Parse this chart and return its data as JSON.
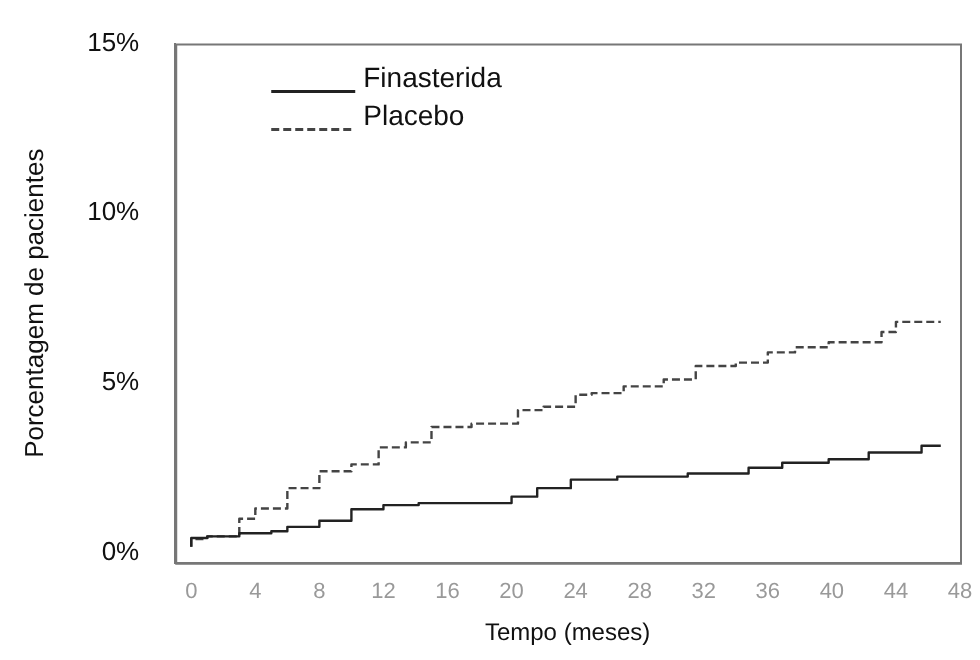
{
  "chart_data": {
    "type": "step",
    "xlabel": "Tempo (meses)",
    "ylabel": "Porcentagem de pacientes",
    "xlim": [
      -1,
      48
    ],
    "xticks": [
      0,
      4,
      8,
      12,
      16,
      20,
      24,
      28,
      32,
      36,
      40,
      44,
      48
    ],
    "ylim": [
      -0.3,
      15
    ],
    "yticks": [
      {
        "value": 0,
        "label": "0%"
      },
      {
        "value": 5,
        "label": "5%"
      },
      {
        "value": 10,
        "label": "10%"
      },
      {
        "value": 15,
        "label": "15%"
      }
    ],
    "grid": false,
    "legend": "top left",
    "marker": "none",
    "series": [
      {
        "name": "Finasterida",
        "color": "#222222",
        "line_style": "solid",
        "x": [
          0,
          1,
          3,
          5,
          6,
          8,
          10,
          12,
          14.2,
          20,
          21.6,
          23.7,
          26.6,
          31,
          34.8,
          36.9,
          39.8,
          42.3,
          45.6,
          46.8
        ],
        "values": [
          0.17,
          0.43,
          0.48,
          0.57,
          0.63,
          0.76,
          0.94,
          1.28,
          1.4,
          1.46,
          1.65,
          1.9,
          2.15,
          2.24,
          2.33,
          2.5,
          2.65,
          2.75,
          2.95,
          3.15
        ]
      },
      {
        "name": "Placebo",
        "color": "#444444",
        "line_style": "dashed",
        "x": [
          0,
          1,
          3,
          4,
          6,
          8,
          10,
          11.7,
          13.4,
          15,
          17.5,
          20.4,
          22,
          24,
          25,
          27,
          29.5,
          31.5,
          34,
          36,
          37.7,
          39.8,
          43.1,
          44,
          46.8
        ],
        "values": [
          0.17,
          0.4,
          0.48,
          1.0,
          1.3,
          1.9,
          2.4,
          2.6,
          3.1,
          3.25,
          3.7,
          3.8,
          4.2,
          4.3,
          4.65,
          4.7,
          4.9,
          5.1,
          5.5,
          5.6,
          5.9,
          6.05,
          6.2,
          6.5,
          6.8
        ]
      }
    ]
  }
}
